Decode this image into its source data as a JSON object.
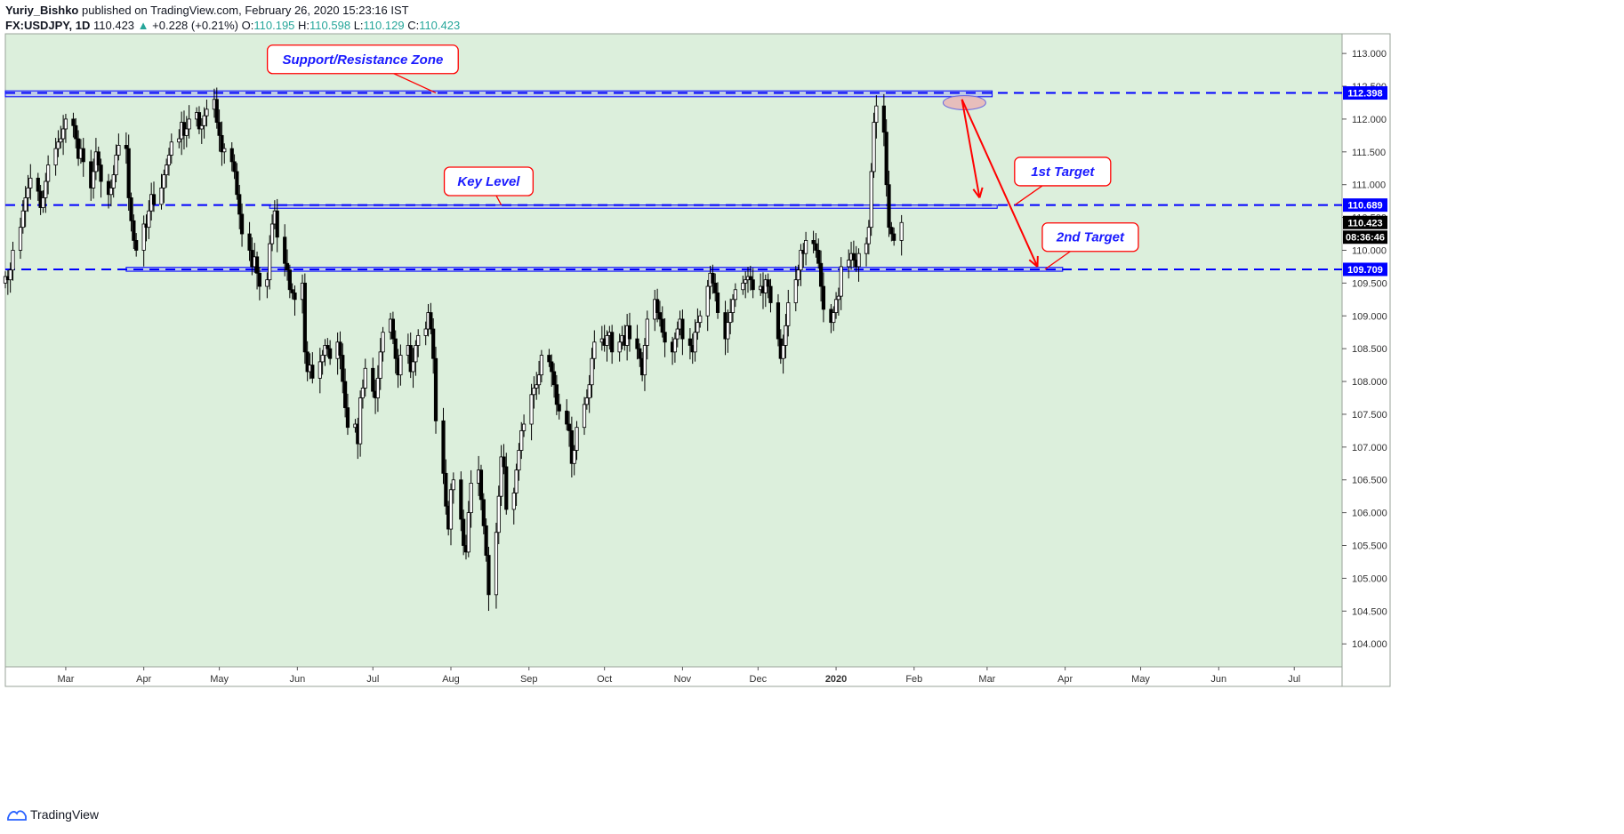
{
  "header": {
    "publisher": "Yuriy_Bishko",
    "published_text": "published on TradingView.com, February 26, 2020 15:23:16 IST",
    "symbol": "FX:USDJPY, 1D",
    "last": "110.423",
    "change_arrow": "▲",
    "change": "+0.228 (+0.21%)",
    "o_label": "O:",
    "o_value": "110.195",
    "h_label": "H:",
    "h_value": "110.598",
    "l_label": "L:",
    "l_value": "110.129",
    "c_label": "C:",
    "c_value": "110.423"
  },
  "footer": {
    "brand": "TradingView",
    "icon": "tradingview-logo-icon"
  },
  "colors": {
    "background": "#dcefdc",
    "line_blue": "#0000ff",
    "zone_fill": "#b8c4e8",
    "arrow_red": "#ff0000",
    "callout_text": "#1a1aff",
    "ellipse_fill": "#e8b8b8",
    "ellipse_stroke": "#6a6ae0"
  },
  "chart_data": {
    "type": "candlestick",
    "symbol": "FX:USDJPY",
    "interval": "1D",
    "ylim": [
      103.65,
      113.3
    ],
    "y_ticks": [
      "113.000",
      "112.500",
      "112.000",
      "111.500",
      "111.000",
      "110.500",
      "110.000",
      "109.500",
      "109.000",
      "108.500",
      "108.000",
      "107.500",
      "107.000",
      "106.500",
      "106.000",
      "105.500",
      "105.000",
      "104.500",
      "104.000"
    ],
    "x_ticks": [
      "Mar",
      "Apr",
      "May",
      "Jun",
      "Jul",
      "Aug",
      "Sep",
      "Oct",
      "Nov",
      "Dec",
      "2020",
      "Feb",
      "Mar",
      "Apr",
      "May",
      "Jun",
      "Jul"
    ],
    "bold_x_tick": "2020",
    "x_range": [
      "2019-02-05",
      "2020-07-20"
    ],
    "price_labels": [
      {
        "value": 112.398,
        "text": "112.398",
        "style": "blue"
      },
      {
        "value": 110.689,
        "text": "110.689",
        "style": "blue"
      },
      {
        "value": 110.423,
        "text": "110.423",
        "style": "black"
      },
      {
        "value": 110.2,
        "text": "08:36:46",
        "style": "black"
      },
      {
        "value": 109.709,
        "text": "109.709",
        "style": "blue"
      }
    ],
    "horizontal_lines": [
      112.398,
      110.689,
      109.709
    ],
    "zones": [
      {
        "from": "2019-02-05",
        "to": "2020-03-03",
        "top": 112.43,
        "bottom": 112.34
      },
      {
        "from": "2019-05-21",
        "to": "2020-03-05",
        "top": 110.69,
        "bottom": 110.64
      },
      {
        "from": "2019-03-25",
        "to": "2020-03-31",
        "top": 109.74,
        "bottom": 109.68
      }
    ],
    "callouts": [
      {
        "text": "Support/Resistance Zone",
        "date": "2019-06-27",
        "price": 112.91,
        "pointer_date": "2019-07-26",
        "pointer_price": 112.4
      },
      {
        "text": "Key Level",
        "date": "2019-08-16",
        "price": 111.05,
        "pointer_date": "2019-08-21",
        "pointer_price": 110.69
      },
      {
        "text": "1st Target",
        "date": "2020-03-31",
        "price": 111.2,
        "pointer_date": "2020-03-12",
        "pointer_price": 110.69
      },
      {
        "text": "2nd Target",
        "date": "2020-04-11",
        "price": 110.2,
        "pointer_date": "2020-03-24",
        "pointer_price": 109.71
      }
    ],
    "arrows": [
      {
        "from_date": "2020-02-20",
        "from_price": 112.3,
        "to_date": "2020-02-27",
        "to_price": 110.8
      },
      {
        "from_date": "2020-02-20",
        "from_price": 112.3,
        "to_date": "2020-03-21",
        "to_price": 109.75
      }
    ],
    "ellipse": {
      "date": "2020-02-21",
      "price": 112.25
    },
    "candles": {
      "start_date": "2019-02-05",
      "closes": [
        109.6,
        109.55,
        109.7,
        110.0,
        110.35,
        110.6,
        110.8,
        110.95,
        111.1,
        110.9,
        110.65,
        110.8,
        111.05,
        111.3,
        111.55,
        111.65,
        111.7,
        111.85,
        112.0,
        111.9,
        111.7,
        111.4,
        111.55,
        111.35,
        110.95,
        111.2,
        111.5,
        111.3,
        111.05,
        110.85,
        110.95,
        111.15,
        111.45,
        111.6,
        111.55,
        110.8,
        110.45,
        110.15,
        110.0,
        110.4,
        110.35,
        110.6,
        110.85,
        110.7,
        110.95,
        111.15,
        111.3,
        111.45,
        111.65,
        111.7,
        111.95,
        111.75,
        111.85,
        112.0,
        112.1,
        111.85,
        111.9,
        112.05,
        112.15,
        112.3,
        111.95,
        111.75,
        111.5,
        111.55,
        111.35,
        111.2,
        110.85,
        110.55,
        110.25,
        110.0,
        109.75,
        109.9,
        109.65,
        109.45,
        109.55,
        110.1,
        110.4,
        110.6,
        110.2,
        109.8,
        109.7,
        109.4,
        109.35,
        109.25,
        109.5,
        108.45,
        108.15,
        108.25,
        108.05,
        108.3,
        108.4,
        108.55,
        108.5,
        108.35,
        108.6,
        108.4,
        108.0,
        107.6,
        107.3,
        107.35,
        107.05,
        107.75,
        107.9,
        108.2,
        107.85,
        107.75,
        108.05,
        108.45,
        108.75,
        108.95,
        108.65,
        108.35,
        108.1,
        108.4,
        108.55,
        108.15,
        108.3,
        108.55,
        108.7,
        108.8,
        109.05,
        108.8,
        108.35,
        107.4,
        106.6,
        106.1,
        105.75,
        106.35,
        106.5,
        105.9,
        105.5,
        105.4,
        106.0,
        106.45,
        106.65,
        106.2,
        105.8,
        105.35,
        104.75,
        105.7,
        106.25,
        106.85,
        106.7,
        106.05,
        106.3,
        106.65,
        106.95,
        107.25,
        107.35,
        107.8,
        107.9,
        107.95,
        108.1,
        108.4,
        108.3,
        108.15,
        107.95,
        107.65,
        107.55,
        107.35,
        107.25,
        106.75,
        106.95,
        107.3,
        107.65,
        107.75,
        107.95,
        108.35,
        108.6,
        108.65,
        108.55,
        108.7,
        108.75,
        108.45,
        108.6,
        108.7,
        108.55,
        108.85,
        108.65,
        108.5,
        108.35,
        108.1,
        108.55,
        108.95,
        109.25,
        109.05,
        108.95,
        108.75,
        108.6,
        108.45,
        108.65,
        108.8,
        108.95,
        108.65,
        108.55,
        108.45,
        108.75,
        108.9,
        109.0,
        109.45,
        109.65,
        109.5,
        109.35,
        109.05,
        108.65,
        108.9,
        109.05,
        109.25,
        109.4,
        109.5,
        109.55,
        109.6,
        109.55,
        109.4,
        109.45,
        109.35,
        109.55,
        109.45,
        109.2,
        108.65,
        108.35,
        108.55,
        108.85,
        109.2,
        109.55,
        109.7,
        110.0,
        109.95,
        110.15,
        110.1,
        110.0,
        109.8,
        109.45,
        109.1,
        108.9,
        109.05,
        109.25,
        109.3,
        109.75,
        109.85,
        109.95,
        109.85,
        109.75,
        109.95,
        110.1,
        110.35,
        111.2,
        111.95,
        112.2,
        111.8,
        111.0,
        110.35,
        110.25,
        110.15,
        110.423
      ]
    }
  }
}
